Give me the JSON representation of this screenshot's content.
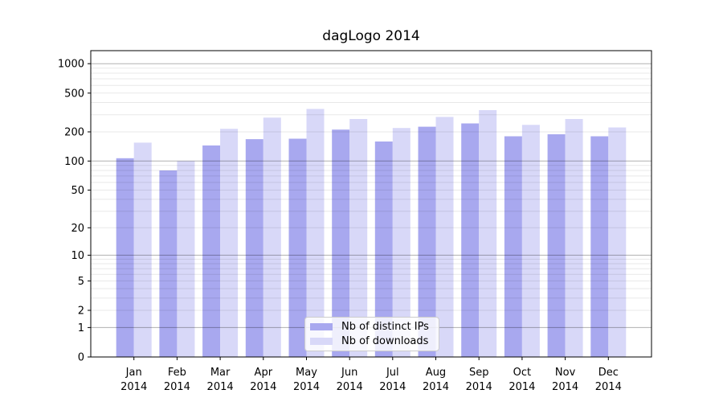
{
  "chart_data": {
    "type": "bar",
    "title": "dagLogo 2014",
    "categories": [
      "Jan 2014",
      "Feb 2014",
      "Mar 2014",
      "Apr 2014",
      "May 2014",
      "Jun 2014",
      "Jul 2014",
      "Aug 2014",
      "Sep 2014",
      "Oct 2014",
      "Nov 2014",
      "Dec 2014"
    ],
    "series": [
      {
        "name": "Nb of distinct IPs",
        "color": "#a8a8ef",
        "values": [
          107,
          80,
          145,
          168,
          170,
          211,
          159,
          226,
          244,
          180,
          189,
          180
        ]
      },
      {
        "name": "Nb of downloads",
        "color": "#d8d8f8",
        "values": [
          155,
          100,
          215,
          280,
          344,
          271,
          219,
          285,
          334,
          236,
          271,
          222
        ]
      }
    ],
    "xlabel": "",
    "ylabel": "",
    "yscale": "log1p",
    "ylim": [
      0,
      1360
    ],
    "yticks": [
      0,
      1,
      2,
      5,
      10,
      20,
      50,
      100,
      200,
      500,
      1000
    ],
    "major_grid_values": [
      1,
      10,
      100,
      1000
    ],
    "grid": true,
    "legend_position": "bottom-center"
  },
  "colors": {
    "axis": "#000000",
    "text": "#000000",
    "grid_major": "rgba(0,0,0,0.31)",
    "grid_minor": "rgba(0,0,0,0.09)",
    "legend_border": "#cccccc",
    "background": "#ffffff"
  }
}
